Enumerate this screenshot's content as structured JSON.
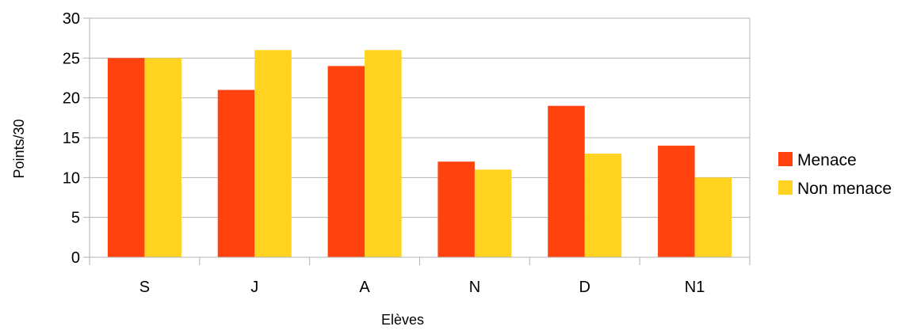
{
  "chart_data": {
    "type": "bar",
    "categories": [
      "S",
      "J",
      "A",
      "N",
      "D",
      "N1"
    ],
    "series": [
      {
        "name": "Menace",
        "values": [
          25,
          21,
          24,
          12,
          19,
          14
        ],
        "color": "#FF420E"
      },
      {
        "name": "Non menace",
        "values": [
          25,
          26,
          26,
          11,
          13,
          10
        ],
        "color": "#FFD320"
      }
    ],
    "xlabel": "Elèves",
    "ylabel": "Points/30",
    "ylim": [
      0,
      30
    ],
    "yticks": [
      "0",
      "5",
      "10",
      "15",
      "20",
      "25",
      "30"
    ],
    "grid": true,
    "legend": "right"
  }
}
